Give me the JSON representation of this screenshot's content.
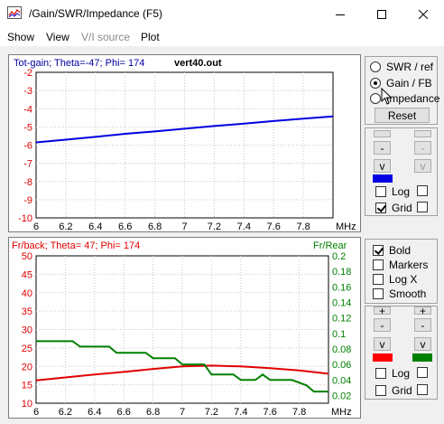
{
  "window": {
    "title": "/Gain/SWR/Impedance (F5)",
    "icon": "chart-icon",
    "controls": [
      "minimize-icon",
      "maximize-icon",
      "close-icon"
    ]
  },
  "menu": [
    "Show",
    "View",
    "V/I source",
    "Plot"
  ],
  "top_panel": {
    "radios": [
      {
        "label": "SWR / ref",
        "selected": false
      },
      {
        "label": "Gain / FB",
        "selected": true
      },
      {
        "label": "Impedance",
        "selected": false
      }
    ],
    "reset_label": "Reset",
    "log_label": "Log",
    "grid_label": "Grid",
    "log_checked": false,
    "grid_checked": true,
    "series_color": "#0000e0"
  },
  "bottom_panel": {
    "checks": [
      {
        "label": "Bold",
        "checked": true
      },
      {
        "label": "Markers",
        "checked": false
      },
      {
        "label": "Log X",
        "checked": false
      },
      {
        "label": "Smooth",
        "checked": false
      }
    ],
    "log_label": "Log",
    "grid_label": "Grid",
    "left_color": "#ff0000",
    "right_color": "#008000"
  },
  "button_symbols": {
    "plus": "+",
    "minus": "-",
    "down": "v"
  },
  "chart_data": [
    {
      "type": "line",
      "title": "Tot-gain; Theta=-47; Phi= 174",
      "file_label": "vert40.out",
      "xlabel": "MHz",
      "xlim": [
        6,
        8.0
      ],
      "x_ticks": [
        6,
        6.2,
        6.4,
        6.6,
        6.8,
        7,
        7.2,
        7.4,
        7.6,
        7.8
      ],
      "x_tick_labels": [
        "6",
        "6.2",
        "6.4",
        "6.6",
        "6.8",
        "7",
        "7.2",
        "7.4",
        "7.6",
        "7.8"
      ],
      "ylim": [
        -10,
        -2
      ],
      "y_ticks": [
        -2,
        -3,
        -4,
        -5,
        -6,
        -7,
        -8,
        -9,
        -10
      ],
      "y_tick_labels": [
        "-2",
        "-3",
        "-4",
        "-5",
        "-6",
        "-7",
        "-8",
        "-9",
        "-10"
      ],
      "grid": true,
      "series": [
        {
          "color": "#0000e0",
          "x": [
            6,
            6.2,
            6.4,
            6.6,
            6.8,
            7,
            7.2,
            7.4,
            7.6,
            7.8,
            8.0
          ],
          "y": [
            -5.85,
            -5.7,
            -5.55,
            -5.38,
            -5.25,
            -5.1,
            -4.95,
            -4.82,
            -4.68,
            -4.55,
            -4.42
          ]
        }
      ]
    },
    {
      "type": "line",
      "title": "Fr/back; Theta= 47; Phi= 174",
      "right_title": "Fr/Rear",
      "xlabel": "MHz",
      "xlim": [
        6,
        8.0
      ],
      "x_ticks": [
        6,
        6.2,
        6.4,
        6.6,
        6.8,
        7,
        7.2,
        7.4,
        7.6,
        7.8
      ],
      "x_tick_labels": [
        "6",
        "6.2",
        "6.4",
        "6.6",
        "6.8",
        "7",
        "7.2",
        "7.4",
        "7.6",
        "7.8"
      ],
      "ylim": [
        10,
        50
      ],
      "y_ticks": [
        50,
        45,
        40,
        35,
        30,
        25,
        20,
        15,
        10
      ],
      "y_tick_labels": [
        "50",
        "45",
        "40",
        "35",
        "30",
        "25",
        "20",
        "15",
        "10"
      ],
      "y2lim": [
        0.01,
        0.2
      ],
      "y2_ticks": [
        0.2,
        0.18,
        0.16,
        0.14,
        0.12,
        0.1,
        0.08,
        0.06,
        0.04,
        0.02
      ],
      "y2_tick_labels": [
        "0.2",
        "0.18",
        "0.16",
        "0.14",
        "0.12",
        "0.1",
        "0.08",
        "0.06",
        "0.04",
        "0.02"
      ],
      "grid": true,
      "series": [
        {
          "axis": "left",
          "color": "#e00000",
          "x": [
            6,
            6.2,
            6.4,
            6.6,
            6.8,
            7,
            7.2,
            7.4,
            7.6,
            7.8,
            8.0
          ],
          "y": [
            16.2,
            17.0,
            17.8,
            18.5,
            19.3,
            20.0,
            20.2,
            20.0,
            19.5,
            18.9,
            18.0
          ]
        },
        {
          "axis": "right",
          "color": "#008000",
          "x": [
            6,
            6.25,
            6.3,
            6.5,
            6.55,
            6.75,
            6.8,
            6.95,
            7.0,
            7.15,
            7.2,
            7.35,
            7.4,
            7.5,
            7.55,
            7.6,
            7.75,
            7.85,
            7.9,
            8.0
          ],
          "y": [
            0.09,
            0.09,
            0.083,
            0.083,
            0.075,
            0.075,
            0.068,
            0.068,
            0.06,
            0.06,
            0.047,
            0.047,
            0.04,
            0.04,
            0.047,
            0.04,
            0.04,
            0.033,
            0.025,
            0.025
          ]
        }
      ]
    }
  ]
}
